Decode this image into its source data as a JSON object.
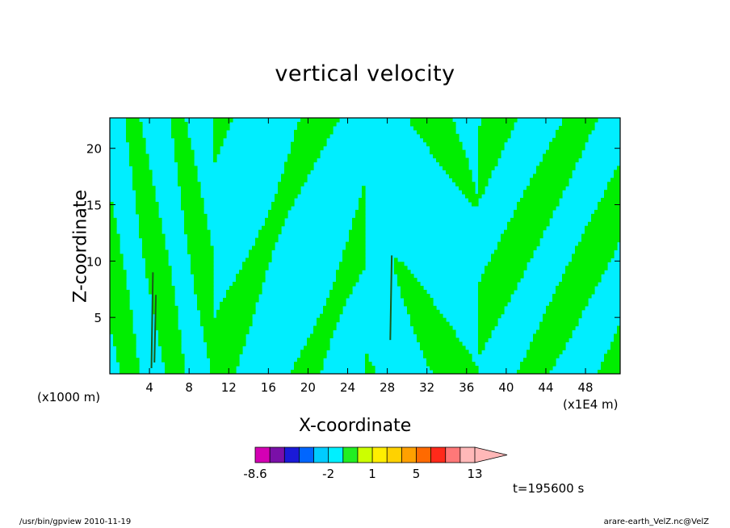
{
  "chart_data": {
    "type": "heatmap",
    "title": "vertical velocity",
    "xlabel": "X-coordinate",
    "ylabel": "Z-coordinate",
    "x_unit_left": "(x1000 m)",
    "x_unit_right": "(x1E4 m)",
    "xlim": [
      0,
      51.5
    ],
    "ylim": [
      0,
      22.7
    ],
    "x_ticks": [
      4,
      8,
      12,
      16,
      20,
      24,
      28,
      32,
      36,
      40,
      44,
      48
    ],
    "y_ticks": [
      5,
      10,
      15,
      20
    ],
    "levels": [
      -8.6,
      -7,
      -5,
      -4,
      -3,
      -2,
      -1,
      0,
      1,
      2,
      3,
      5,
      7,
      9,
      11,
      13,
      17
    ],
    "colorbar_labels": [
      {
        "value": -8.6,
        "text": "-8.6"
      },
      {
        "value": -2,
        "text": "-2"
      },
      {
        "value": 1,
        "text": "1"
      },
      {
        "value": 5,
        "text": "5"
      },
      {
        "value": 13,
        "text": "13"
      }
    ],
    "colors": [
      "#d400b4",
      "#7a10a8",
      "#1a1ad8",
      "#0066ff",
      "#00ccff",
      "#00f0ff",
      "#22ee22",
      "#ccff00",
      "#ffee00",
      "#ffd200",
      "#ffa000",
      "#ff6a00",
      "#ff2a1a",
      "#ff7878",
      "#ffb8b8"
    ],
    "dominant_colors": {
      "negative": "#00eeff",
      "positive": "#00ee00"
    },
    "time_label": "t=195600 s"
  },
  "footer": {
    "left": "/usr/bin/gpview   2010-11-19",
    "right": "arare-earth_VelZ.nc@VelZ"
  }
}
